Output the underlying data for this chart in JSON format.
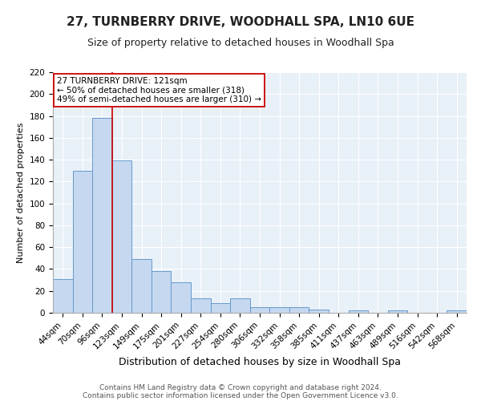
{
  "title": "27, TURNBERRY DRIVE, WOODHALL SPA, LN10 6UE",
  "subtitle": "Size of property relative to detached houses in Woodhall Spa",
  "xlabel": "Distribution of detached houses by size in Woodhall Spa",
  "ylabel": "Number of detached properties",
  "categories": [
    "44sqm",
    "70sqm",
    "96sqm",
    "123sqm",
    "149sqm",
    "175sqm",
    "201sqm",
    "227sqm",
    "254sqm",
    "280sqm",
    "306sqm",
    "332sqm",
    "358sqm",
    "385sqm",
    "411sqm",
    "437sqm",
    "463sqm",
    "489sqm",
    "516sqm",
    "542sqm",
    "568sqm"
  ],
  "values": [
    31,
    130,
    178,
    139,
    49,
    38,
    28,
    13,
    9,
    13,
    5,
    5,
    5,
    3,
    0,
    2,
    0,
    2,
    0,
    0,
    2
  ],
  "bar_color": "#c5d8f0",
  "bar_edge_color": "#6699cc",
  "vline_x": 2.5,
  "vline_color": "#cc0000",
  "annotation_line1": "27 TURNBERRY DRIVE: 121sqm",
  "annotation_line2": "← 50% of detached houses are smaller (318)",
  "annotation_line3": "49% of semi-detached houses are larger (310) →",
  "annotation_box_color": "#ffffff",
  "annotation_box_edge": "#cc0000",
  "ylim": [
    0,
    220
  ],
  "yticks": [
    0,
    20,
    40,
    60,
    80,
    100,
    120,
    140,
    160,
    180,
    200,
    220
  ],
  "background_color": "#e8f0f8",
  "footer_line1": "Contains HM Land Registry data © Crown copyright and database right 2024.",
  "footer_line2": "Contains public sector information licensed under the Open Government Licence v3.0.",
  "title_fontsize": 11,
  "subtitle_fontsize": 9,
  "xlabel_fontsize": 9,
  "ylabel_fontsize": 8,
  "tick_fontsize": 7.5,
  "annotation_fontsize": 7.5,
  "footer_fontsize": 6.5
}
